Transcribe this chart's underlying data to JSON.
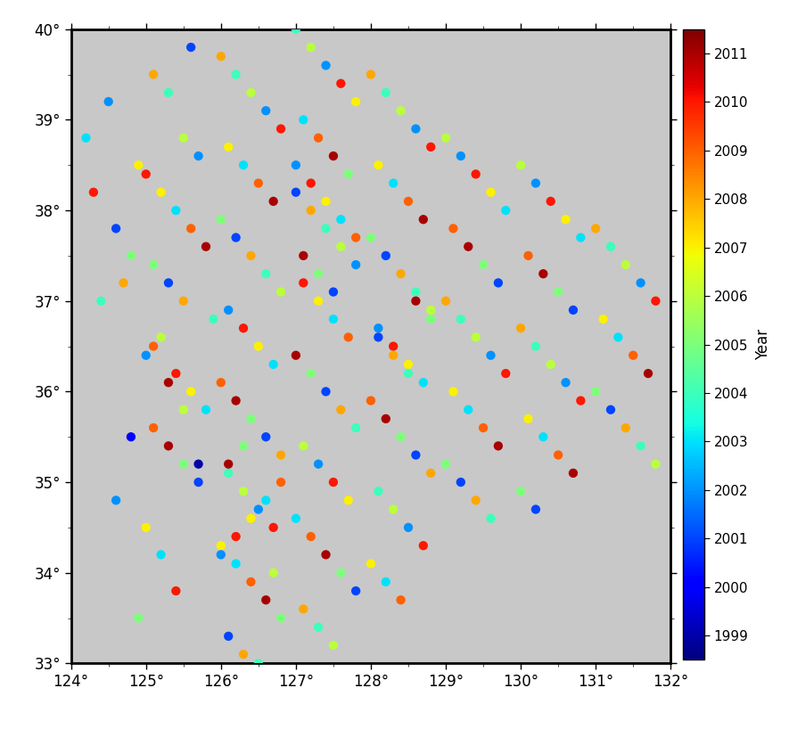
{
  "lon_min": 124.0,
  "lon_max": 132.0,
  "lat_min": 33.0,
  "lat_max": 40.0,
  "lon_ticks": [
    124,
    125,
    126,
    127,
    128,
    129,
    130,
    131,
    132
  ],
  "lat_ticks": [
    33,
    34,
    35,
    36,
    37,
    38,
    39,
    40
  ],
  "year_min": 1999,
  "year_max": 2011,
  "colorbar_label": "Year",
  "colorbar_years": [
    1999,
    2000,
    2001,
    2002,
    2003,
    2004,
    2005,
    2006,
    2007,
    2008,
    2009,
    2010,
    2011
  ],
  "land_color": "#c8c8c8",
  "sea_color": "#c8c8c8",
  "korea_land_color": "#ffffff",
  "marker_size": 55,
  "figsize": [
    8.85,
    8.18
  ],
  "dpi": 100,
  "eq_lons": [
    124.2,
    124.5,
    124.9,
    124.3,
    124.6,
    124.8,
    124.7,
    124.4,
    125.1,
    125.3,
    125.5,
    124.8,
    125.7,
    124.6,
    125.0,
    125.2,
    125.4,
    124.9,
    125.6,
    125.1,
    125.3,
    125.5,
    125.7,
    125.0,
    125.2,
    125.4,
    125.6,
    125.8,
    125.1,
    125.3,
    125.5,
    125.9,
    125.2,
    125.0,
    125.4,
    125.6,
    125.8,
    125.1,
    125.3,
    125.5,
    125.7,
    126.0,
    126.2,
    126.4,
    126.6,
    126.8,
    126.1,
    126.3,
    126.5,
    126.7,
    126.0,
    126.2,
    126.4,
    126.6,
    126.8,
    126.1,
    126.3,
    126.5,
    126.7,
    126.0,
    126.2,
    126.4,
    126.6,
    126.8,
    126.1,
    126.3,
    126.5,
    126.7,
    126.0,
    126.2,
    126.4,
    126.6,
    126.8,
    126.1,
    126.3,
    126.5,
    126.7,
    126.0,
    126.2,
    126.4,
    126.6,
    126.8,
    126.1,
    126.3,
    127.0,
    127.2,
    127.4,
    127.6,
    127.8,
    127.1,
    127.3,
    127.5,
    127.7,
    127.0,
    127.2,
    127.4,
    127.6,
    127.8,
    127.1,
    127.3,
    127.5,
    127.7,
    127.0,
    127.2,
    127.4,
    127.6,
    127.8,
    127.1,
    127.3,
    127.5,
    127.7,
    127.0,
    127.2,
    127.4,
    127.6,
    127.8,
    127.1,
    127.3,
    127.5,
    127.0,
    127.2,
    127.4,
    127.6,
    127.8,
    127.1,
    127.3,
    127.5,
    128.0,
    128.2,
    128.4,
    128.6,
    128.8,
    128.1,
    128.3,
    128.5,
    128.7,
    128.0,
    128.2,
    128.4,
    128.6,
    128.8,
    128.1,
    128.3,
    128.5,
    128.7,
    128.0,
    128.2,
    128.4,
    128.6,
    128.8,
    128.1,
    128.3,
    128.5,
    128.7,
    128.0,
    128.2,
    128.4,
    128.6,
    128.8,
    128.1,
    128.3,
    128.5,
    129.0,
    129.2,
    129.4,
    129.6,
    129.8,
    129.1,
    129.3,
    129.5,
    129.7,
    129.0,
    129.2,
    129.4,
    129.6,
    129.8,
    129.1,
    129.3,
    129.5,
    129.7,
    129.0,
    129.2,
    129.4,
    129.6,
    130.0,
    130.2,
    130.4,
    130.6,
    130.8,
    130.1,
    130.3,
    130.5,
    130.7,
    130.0,
    130.2,
    130.4,
    130.6,
    130.8,
    130.1,
    130.3,
    130.5,
    130.7,
    130.0,
    130.2,
    131.0,
    131.2,
    131.4,
    131.6,
    131.8,
    131.1,
    131.3,
    131.5,
    131.7,
    131.0,
    131.2,
    131.4,
    131.6,
    131.8
  ],
  "eq_lats": [
    38.8,
    39.2,
    38.5,
    38.2,
    37.8,
    37.5,
    37.2,
    37.0,
    36.5,
    36.1,
    35.8,
    35.5,
    35.2,
    34.8,
    34.5,
    34.2,
    33.8,
    33.5,
    39.8,
    39.5,
    39.3,
    38.8,
    38.6,
    38.4,
    38.2,
    38.0,
    37.8,
    37.6,
    37.4,
    37.2,
    37.0,
    36.8,
    36.6,
    36.4,
    36.2,
    36.0,
    35.8,
    35.6,
    35.4,
    35.2,
    35.0,
    39.7,
    39.5,
    39.3,
    39.1,
    38.9,
    38.7,
    38.5,
    38.3,
    38.1,
    37.9,
    37.7,
    37.5,
    37.3,
    37.1,
    36.9,
    36.7,
    36.5,
    36.3,
    36.1,
    35.9,
    35.7,
    35.5,
    35.3,
    35.1,
    34.9,
    34.7,
    34.5,
    34.3,
    34.1,
    33.9,
    33.7,
    33.5,
    33.3,
    33.1,
    33.0,
    34.0,
    34.2,
    34.4,
    34.6,
    34.8,
    35.0,
    35.2,
    35.4,
    40.0,
    39.8,
    39.6,
    39.4,
    39.2,
    39.0,
    38.8,
    38.6,
    38.4,
    38.2,
    38.0,
    37.8,
    37.6,
    37.4,
    37.2,
    37.0,
    36.8,
    36.6,
    36.4,
    36.2,
    36.0,
    35.8,
    35.6,
    35.4,
    35.2,
    35.0,
    34.8,
    34.6,
    34.4,
    34.2,
    34.0,
    33.8,
    33.6,
    33.4,
    33.2,
    38.5,
    38.3,
    38.1,
    37.9,
    37.7,
    37.5,
    37.3,
    37.1,
    39.5,
    39.3,
    39.1,
    38.9,
    38.7,
    38.5,
    38.3,
    38.1,
    37.9,
    37.7,
    37.5,
    37.3,
    37.1,
    36.9,
    36.7,
    36.5,
    36.3,
    36.1,
    35.9,
    35.7,
    35.5,
    35.3,
    35.1,
    34.9,
    34.7,
    34.5,
    34.3,
    34.1,
    33.9,
    33.7,
    37.0,
    36.8,
    36.6,
    36.4,
    36.2,
    38.8,
    38.6,
    38.4,
    38.2,
    38.0,
    37.8,
    37.6,
    37.4,
    37.2,
    37.0,
    36.8,
    36.6,
    36.4,
    36.2,
    36.0,
    35.8,
    35.6,
    35.4,
    35.2,
    35.0,
    34.8,
    34.6,
    38.5,
    38.3,
    38.1,
    37.9,
    37.7,
    37.5,
    37.3,
    37.1,
    36.9,
    36.7,
    36.5,
    36.3,
    36.1,
    35.9,
    35.7,
    35.5,
    35.3,
    35.1,
    34.9,
    34.7,
    37.8,
    37.6,
    37.4,
    37.2,
    37.0,
    36.8,
    36.6,
    36.4,
    36.2,
    36.0,
    35.8,
    35.6,
    35.4,
    35.2
  ],
  "eq_years": [
    2003,
    2002,
    2007,
    2010,
    2001,
    2005,
    2008,
    2004,
    2009,
    2011,
    2006,
    2000,
    1999,
    2002,
    2007,
    2003,
    2010,
    2005,
    2001,
    2008,
    2004,
    2006,
    2002,
    2010,
    2007,
    2003,
    2009,
    2011,
    2005,
    2001,
    2008,
    2004,
    2006,
    2002,
    2010,
    2007,
    2003,
    2009,
    2011,
    2005,
    2001,
    2008,
    2004,
    2006,
    2002,
    2010,
    2007,
    2003,
    2009,
    2011,
    2005,
    2001,
    2008,
    2004,
    2006,
    2002,
    2010,
    2007,
    2003,
    2009,
    2011,
    2005,
    2001,
    2008,
    2004,
    2006,
    2002,
    2010,
    2007,
    2003,
    2009,
    2011,
    2005,
    2001,
    2008,
    2004,
    2006,
    2002,
    2010,
    2007,
    2003,
    2009,
    2011,
    2005,
    2004,
    2006,
    2002,
    2010,
    2007,
    2003,
    2009,
    2011,
    2005,
    2001,
    2008,
    2004,
    2006,
    2002,
    2010,
    2007,
    2003,
    2009,
    2011,
    2005,
    2001,
    2008,
    2004,
    2006,
    2002,
    2010,
    2007,
    2003,
    2009,
    2011,
    2005,
    2001,
    2008,
    2004,
    2006,
    2002,
    2010,
    2007,
    2003,
    2009,
    2011,
    2005,
    2001,
    2008,
    2004,
    2006,
    2002,
    2010,
    2007,
    2003,
    2009,
    2011,
    2005,
    2001,
    2008,
    2004,
    2006,
    2002,
    2010,
    2007,
    2003,
    2009,
    2011,
    2005,
    2001,
    2008,
    2004,
    2006,
    2002,
    2010,
    2007,
    2003,
    2009,
    2011,
    2005,
    2001,
    2008,
    2004,
    2006,
    2002,
    2010,
    2007,
    2003,
    2009,
    2011,
    2005,
    2001,
    2008,
    2004,
    2006,
    2002,
    2010,
    2007,
    2003,
    2009,
    2011,
    2005,
    2001,
    2008,
    2004,
    2006,
    2002,
    2010,
    2007,
    2003,
    2009,
    2011,
    2005,
    2001,
    2008,
    2004,
    2006,
    2002,
    2010,
    2007,
    2003,
    2009,
    2011,
    2005,
    2001,
    2008,
    2004,
    2006,
    2002,
    2010,
    2007,
    2003,
    2009,
    2011,
    2005,
    2001,
    2008,
    2004,
    2006
  ]
}
